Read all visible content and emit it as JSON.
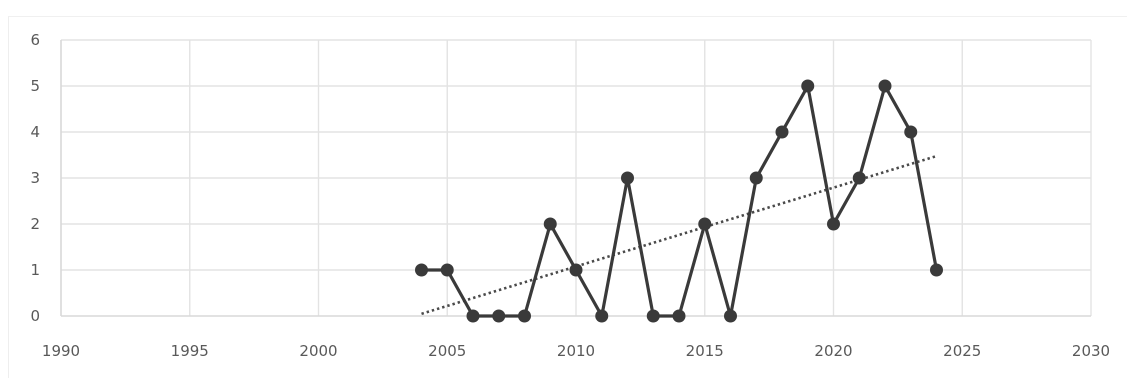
{
  "chart_data": {
    "type": "line",
    "title": "",
    "xlabel": "",
    "ylabel": "",
    "xlim": [
      1990,
      2030
    ],
    "ylim": [
      0,
      6
    ],
    "x_ticks": [
      1990,
      1995,
      2000,
      2005,
      2010,
      2015,
      2020,
      2025,
      2030
    ],
    "y_ticks": [
      0,
      1,
      2,
      3,
      4,
      5,
      6
    ],
    "grid": true,
    "legend": "none",
    "series": [
      {
        "x": [
          2004,
          2005,
          2006,
          2007,
          2008,
          2009,
          2010,
          2011,
          2012,
          2013,
          2014,
          2015,
          2016,
          2017,
          2018,
          2019,
          2020,
          2021,
          2022,
          2023,
          2024
        ],
        "values": [
          1,
          1,
          0,
          0,
          0,
          2,
          1,
          0,
          3,
          0,
          0,
          2,
          0,
          3,
          4,
          5,
          2,
          3,
          5,
          4,
          1
        ],
        "color": "#3a3a3a",
        "markers": true
      }
    ],
    "trendline": {
      "type": "linear",
      "style": "dotted",
      "color": "#4a4a4a"
    }
  }
}
